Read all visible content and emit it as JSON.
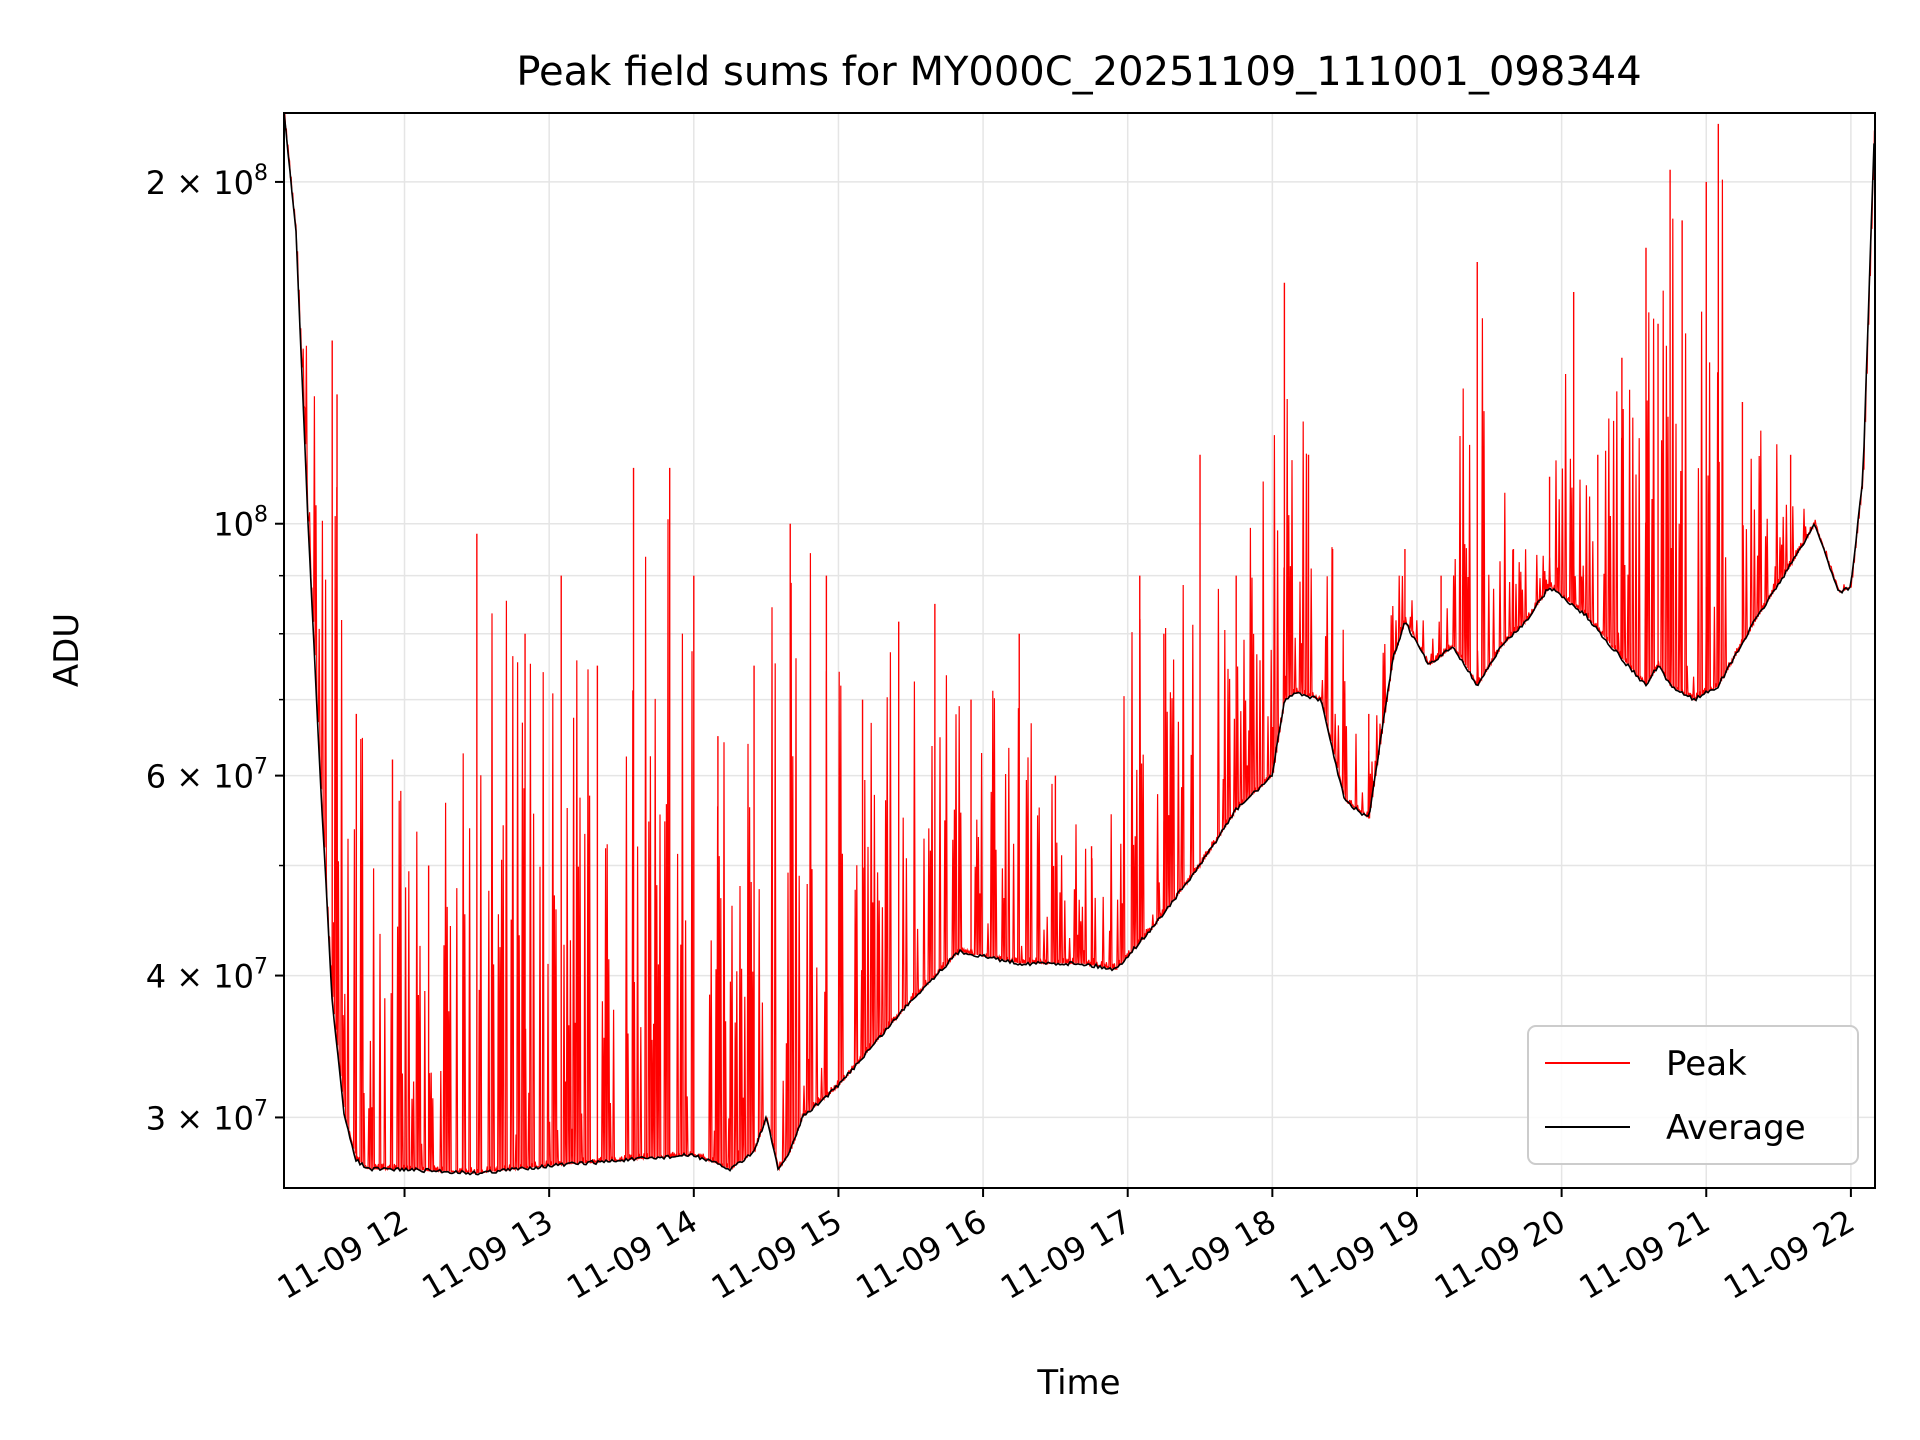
{
  "chart_data": {
    "type": "line",
    "title": "Peak field sums for MY000C_20251109_111001_098344",
    "xlabel": "Time",
    "ylabel": "ADU",
    "yscale": "log",
    "ylim": [
      26000000,
      230000000
    ],
    "xlim": [
      "2025-11-09 11:10",
      "2025-11-09 22:10"
    ],
    "grid": true,
    "legend_position": "lower-right",
    "x_ticks": [
      {
        "value": "2025-11-09 12:00",
        "label": "11-09 12"
      },
      {
        "value": "2025-11-09 13:00",
        "label": "11-09 13"
      },
      {
        "value": "2025-11-09 14:00",
        "label": "11-09 14"
      },
      {
        "value": "2025-11-09 15:00",
        "label": "11-09 15"
      },
      {
        "value": "2025-11-09 16:00",
        "label": "11-09 16"
      },
      {
        "value": "2025-11-09 17:00",
        "label": "11-09 17"
      },
      {
        "value": "2025-11-09 18:00",
        "label": "11-09 18"
      },
      {
        "value": "2025-11-09 19:00",
        "label": "11-09 19"
      },
      {
        "value": "2025-11-09 20:00",
        "label": "11-09 20"
      },
      {
        "value": "2025-11-09 21:00",
        "label": "11-09 21"
      },
      {
        "value": "2025-11-09 22:00",
        "label": "11-09 22"
      }
    ],
    "y_ticks": [
      {
        "value": 30000000,
        "label": "3 × 10^7"
      },
      {
        "value": 40000000,
        "label": "4 × 10^7"
      },
      {
        "value": 60000000,
        "label": "6 × 10^7"
      },
      {
        "value": 100000000,
        "label": "10^8"
      },
      {
        "value": 200000000,
        "label": "2 × 10^8"
      }
    ],
    "series": [
      {
        "name": "Average",
        "color": "#000000",
        "x": [
          "2025-11-09 11:10",
          "2025-11-09 11:15",
          "2025-11-09 11:20",
          "2025-11-09 11:25",
          "2025-11-09 11:30",
          "2025-11-09 11:35",
          "2025-11-09 11:40",
          "2025-11-09 11:45",
          "2025-11-09 11:50",
          "2025-11-09 12:00",
          "2025-11-09 12:30",
          "2025-11-09 13:00",
          "2025-11-09 13:30",
          "2025-11-09 14:00",
          "2025-11-09 14:15",
          "2025-11-09 14:25",
          "2025-11-09 14:30",
          "2025-11-09 14:35",
          "2025-11-09 14:40",
          "2025-11-09 14:45",
          "2025-11-09 15:00",
          "2025-11-09 15:30",
          "2025-11-09 15:50",
          "2025-11-09 16:15",
          "2025-11-09 16:40",
          "2025-11-09 16:55",
          "2025-11-09 17:10",
          "2025-11-09 17:30",
          "2025-11-09 17:45",
          "2025-11-09 18:00",
          "2025-11-09 18:05",
          "2025-11-09 18:10",
          "2025-11-09 18:20",
          "2025-11-09 18:30",
          "2025-11-09 18:40",
          "2025-11-09 18:50",
          "2025-11-09 18:55",
          "2025-11-09 19:05",
          "2025-11-09 19:15",
          "2025-11-09 19:25",
          "2025-11-09 19:35",
          "2025-11-09 19:45",
          "2025-11-09 19:55",
          "2025-11-09 20:10",
          "2025-11-09 20:25",
          "2025-11-09 20:35",
          "2025-11-09 20:40",
          "2025-11-09 20:45",
          "2025-11-09 20:55",
          "2025-11-09 21:05",
          "2025-11-09 21:20",
          "2025-11-09 21:35",
          "2025-11-09 21:45",
          "2025-11-09 21:55",
          "2025-11-09 22:00",
          "2025-11-09 22:05",
          "2025-11-09 22:10"
        ],
        "values": [
          230000000,
          180000000,
          100000000,
          60000000,
          38000000,
          30000000,
          27500000,
          27000000,
          27000000,
          27000000,
          26800000,
          27200000,
          27500000,
          27800000,
          27000000,
          28000000,
          30000000,
          27000000,
          28000000,
          30000000,
          32000000,
          38000000,
          42000000,
          41000000,
          41000000,
          40500000,
          44000000,
          50000000,
          56000000,
          60000000,
          70000000,
          71000000,
          70000000,
          57000000,
          55000000,
          76000000,
          82000000,
          75000000,
          78000000,
          72000000,
          78000000,
          82000000,
          88000000,
          83000000,
          76000000,
          72000000,
          75000000,
          72000000,
          70000000,
          72000000,
          82000000,
          92000000,
          100000000,
          87000000,
          88000000,
          110000000,
          230000000
        ]
      },
      {
        "name": "Peak",
        "color": "#ff0000",
        "spike_x": [
          "2025-11-09 11:30",
          "2025-11-09 11:32",
          "2025-11-09 11:40",
          "2025-11-09 11:55",
          "2025-11-09 12:10",
          "2025-11-09 12:30",
          "2025-11-09 12:50",
          "2025-11-09 13:05",
          "2025-11-09 13:20",
          "2025-11-09 13:35",
          "2025-11-09 13:50",
          "2025-11-09 14:00",
          "2025-11-09 14:10",
          "2025-11-09 14:25",
          "2025-11-09 14:40",
          "2025-11-09 14:55",
          "2025-11-09 15:10",
          "2025-11-09 15:25",
          "2025-11-09 15:40",
          "2025-11-09 15:55",
          "2025-11-09 16:15",
          "2025-11-09 16:30",
          "2025-11-09 16:45",
          "2025-11-09 17:05",
          "2025-11-09 17:15",
          "2025-11-09 17:30",
          "2025-11-09 17:45",
          "2025-11-09 18:05",
          "2025-11-09 18:15",
          "2025-11-09 18:25",
          "2025-11-09 18:40",
          "2025-11-09 18:55",
          "2025-11-09 19:10",
          "2025-11-09 19:25",
          "2025-11-09 19:40",
          "2025-11-09 19:55",
          "2025-11-09 20:05",
          "2025-11-09 20:15",
          "2025-11-09 20:25",
          "2025-11-09 20:35",
          "2025-11-09 20:40",
          "2025-11-09 20:45",
          "2025-11-09 20:50",
          "2025-11-09 21:00",
          "2025-11-09 21:05",
          "2025-11-09 21:15",
          "2025-11-09 21:35",
          "2025-11-09 21:55"
        ],
        "spike_values": [
          145000000,
          130000000,
          68000000,
          62000000,
          50000000,
          98000000,
          80000000,
          90000000,
          75000000,
          112000000,
          112000000,
          90000000,
          65000000,
          75000000,
          100000000,
          90000000,
          70000000,
          82000000,
          85000000,
          70000000,
          80000000,
          60000000,
          52000000,
          90000000,
          80000000,
          115000000,
          90000000,
          163000000,
          115000000,
          95000000,
          68000000,
          95000000,
          90000000,
          170000000,
          95000000,
          110000000,
          160000000,
          115000000,
          140000000,
          175000000,
          150000000,
          205000000,
          185000000,
          200000000,
          225000000,
          128000000,
          115000000,
          87000000
        ]
      }
    ]
  }
}
